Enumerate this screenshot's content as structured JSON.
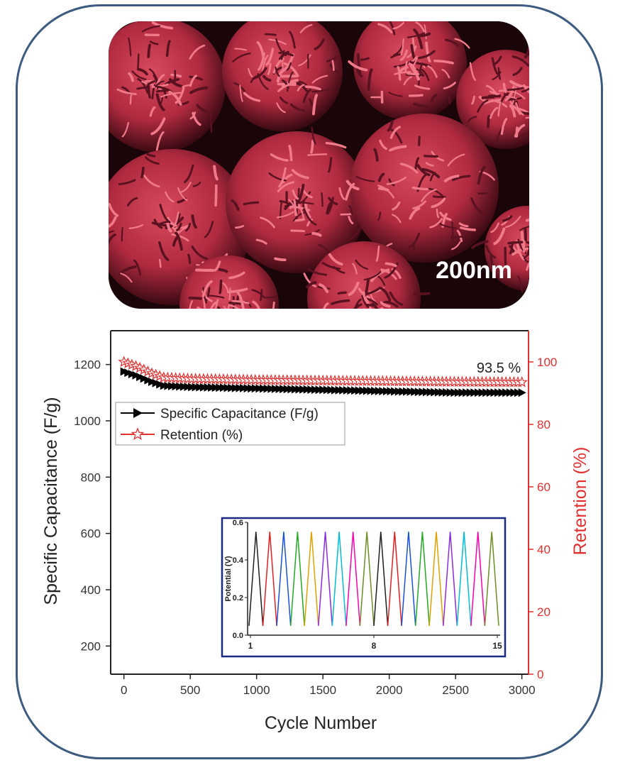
{
  "image": {
    "scale_bar_label": "200nm",
    "tint_color": "#c8384c"
  },
  "chart_data": {
    "type": "line",
    "xlabel": "Cycle Number",
    "ylabel_left": "Specific Capacitance (F/g)",
    "ylabel_right": "Retention (%)",
    "xlim": [
      -100,
      3050
    ],
    "xticks": [
      0,
      500,
      1000,
      1500,
      2000,
      2500,
      3000
    ],
    "ylim_left": [
      100,
      1320
    ],
    "yticks_left": [
      200,
      400,
      600,
      800,
      1000,
      1200
    ],
    "ylim_right": [
      0,
      110
    ],
    "yticks_right": [
      0,
      20,
      40,
      60,
      80,
      100
    ],
    "legend_position": "upper-left",
    "annotation": "93.5 %",
    "colors": {
      "capacitance": "#000000",
      "retention": "#e03030",
      "right_axis": "#e03030",
      "inset_border": "#1a2a80"
    },
    "series": [
      {
        "name": "Specific Capacitance (F/g)",
        "axis": "left",
        "marker": "right-triangle",
        "x": [
          0,
          100,
          200,
          300,
          500,
          1000,
          1500,
          2000,
          2500,
          3000
        ],
        "y": [
          1175,
          1160,
          1140,
          1125,
          1120,
          1115,
          1110,
          1105,
          1100,
          1100
        ]
      },
      {
        "name": "Retention (%)",
        "axis": "right",
        "marker": "star-open",
        "x": [
          0,
          100,
          200,
          300,
          500,
          1000,
          1500,
          2000,
          2500,
          3000
        ],
        "y": [
          100,
          98.5,
          96.5,
          95,
          94.6,
          94.2,
          94,
          93.8,
          93.6,
          93.5
        ]
      }
    ],
    "inset": {
      "type": "line",
      "ylabel": "Potential (V)",
      "ylim": [
        0,
        0.6
      ],
      "yticks": [
        "0.0",
        "0.2",
        "0.4",
        "0.6"
      ],
      "xticks": [
        "1",
        "8",
        "15"
      ],
      "cycles": 18,
      "v_min": 0.05,
      "v_max": 0.55,
      "colors": [
        "#1f1f1f",
        "#e02020",
        "#1a4fd8",
        "#22aa22",
        "#e0a000",
        "#8a2be2",
        "#00bcd4",
        "#ff00aa",
        "#6b8e23",
        "#1f1f1f",
        "#e02020",
        "#1a4fd8",
        "#22aa22",
        "#e0a000",
        "#8a2be2",
        "#00bcd4",
        "#ff00aa",
        "#6b8e23"
      ]
    }
  }
}
